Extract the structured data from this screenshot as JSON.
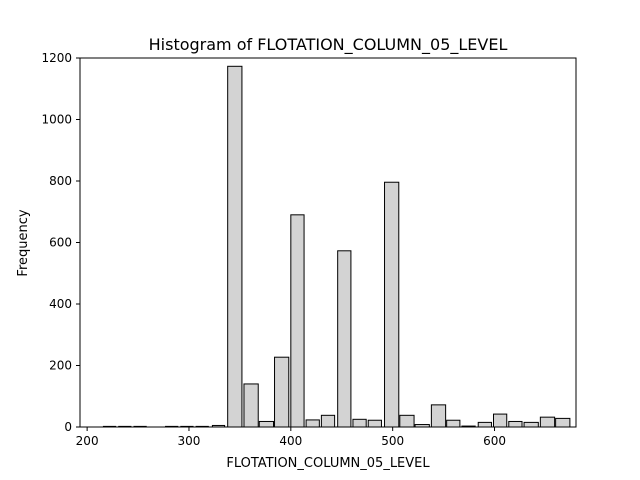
{
  "chart_data": {
    "type": "bar",
    "title": "Histogram of FLOTATION_COLUMN_05_LEVEL",
    "xlabel": "FLOTATION_COLUMN_05_LEVEL",
    "ylabel": "Frequency",
    "xlim": [
      193,
      680
    ],
    "ylim": [
      0,
      1200
    ],
    "grid": false,
    "xticks": [
      200,
      300,
      400,
      500,
      600
    ],
    "yticks": [
      0,
      200,
      400,
      600,
      800,
      1000,
      1200
    ],
    "bin_width": 15,
    "bins": [
      {
        "x0": 216,
        "x1": 228,
        "value": 2
      },
      {
        "x0": 231,
        "x1": 243,
        "value": 2
      },
      {
        "x0": 246,
        "x1": 258,
        "value": 2
      },
      {
        "x0": 277,
        "x1": 289,
        "value": 2
      },
      {
        "x0": 292,
        "x1": 304,
        "value": 2
      },
      {
        "x0": 307,
        "x1": 319,
        "value": 2
      },
      {
        "x0": 323,
        "x1": 335,
        "value": 5
      },
      {
        "x0": 338,
        "x1": 352,
        "value": 1173
      },
      {
        "x0": 354,
        "x1": 368,
        "value": 140
      },
      {
        "x0": 369,
        "x1": 383,
        "value": 18
      },
      {
        "x0": 384,
        "x1": 398,
        "value": 227
      },
      {
        "x0": 400,
        "x1": 413,
        "value": 690
      },
      {
        "x0": 415,
        "x1": 428,
        "value": 23
      },
      {
        "x0": 430,
        "x1": 443,
        "value": 38
      },
      {
        "x0": 446,
        "x1": 459,
        "value": 573
      },
      {
        "x0": 461,
        "x1": 474,
        "value": 25
      },
      {
        "x0": 476,
        "x1": 489,
        "value": 22
      },
      {
        "x0": 492,
        "x1": 506,
        "value": 796
      },
      {
        "x0": 507,
        "x1": 521,
        "value": 38
      },
      {
        "x0": 522,
        "x1": 536,
        "value": 8
      },
      {
        "x0": 538,
        "x1": 552,
        "value": 72
      },
      {
        "x0": 553,
        "x1": 566,
        "value": 22
      },
      {
        "x0": 568,
        "x1": 581,
        "value": 3
      },
      {
        "x0": 584,
        "x1": 597,
        "value": 15
      },
      {
        "x0": 599,
        "x1": 612,
        "value": 42
      },
      {
        "x0": 614,
        "x1": 627,
        "value": 18
      },
      {
        "x0": 629,
        "x1": 643,
        "value": 15
      },
      {
        "x0": 645,
        "x1": 659,
        "value": 32
      },
      {
        "x0": 660,
        "x1": 674,
        "value": 28
      }
    ],
    "bar_fill": "#d3d3d3",
    "bar_edge": "#000000"
  }
}
